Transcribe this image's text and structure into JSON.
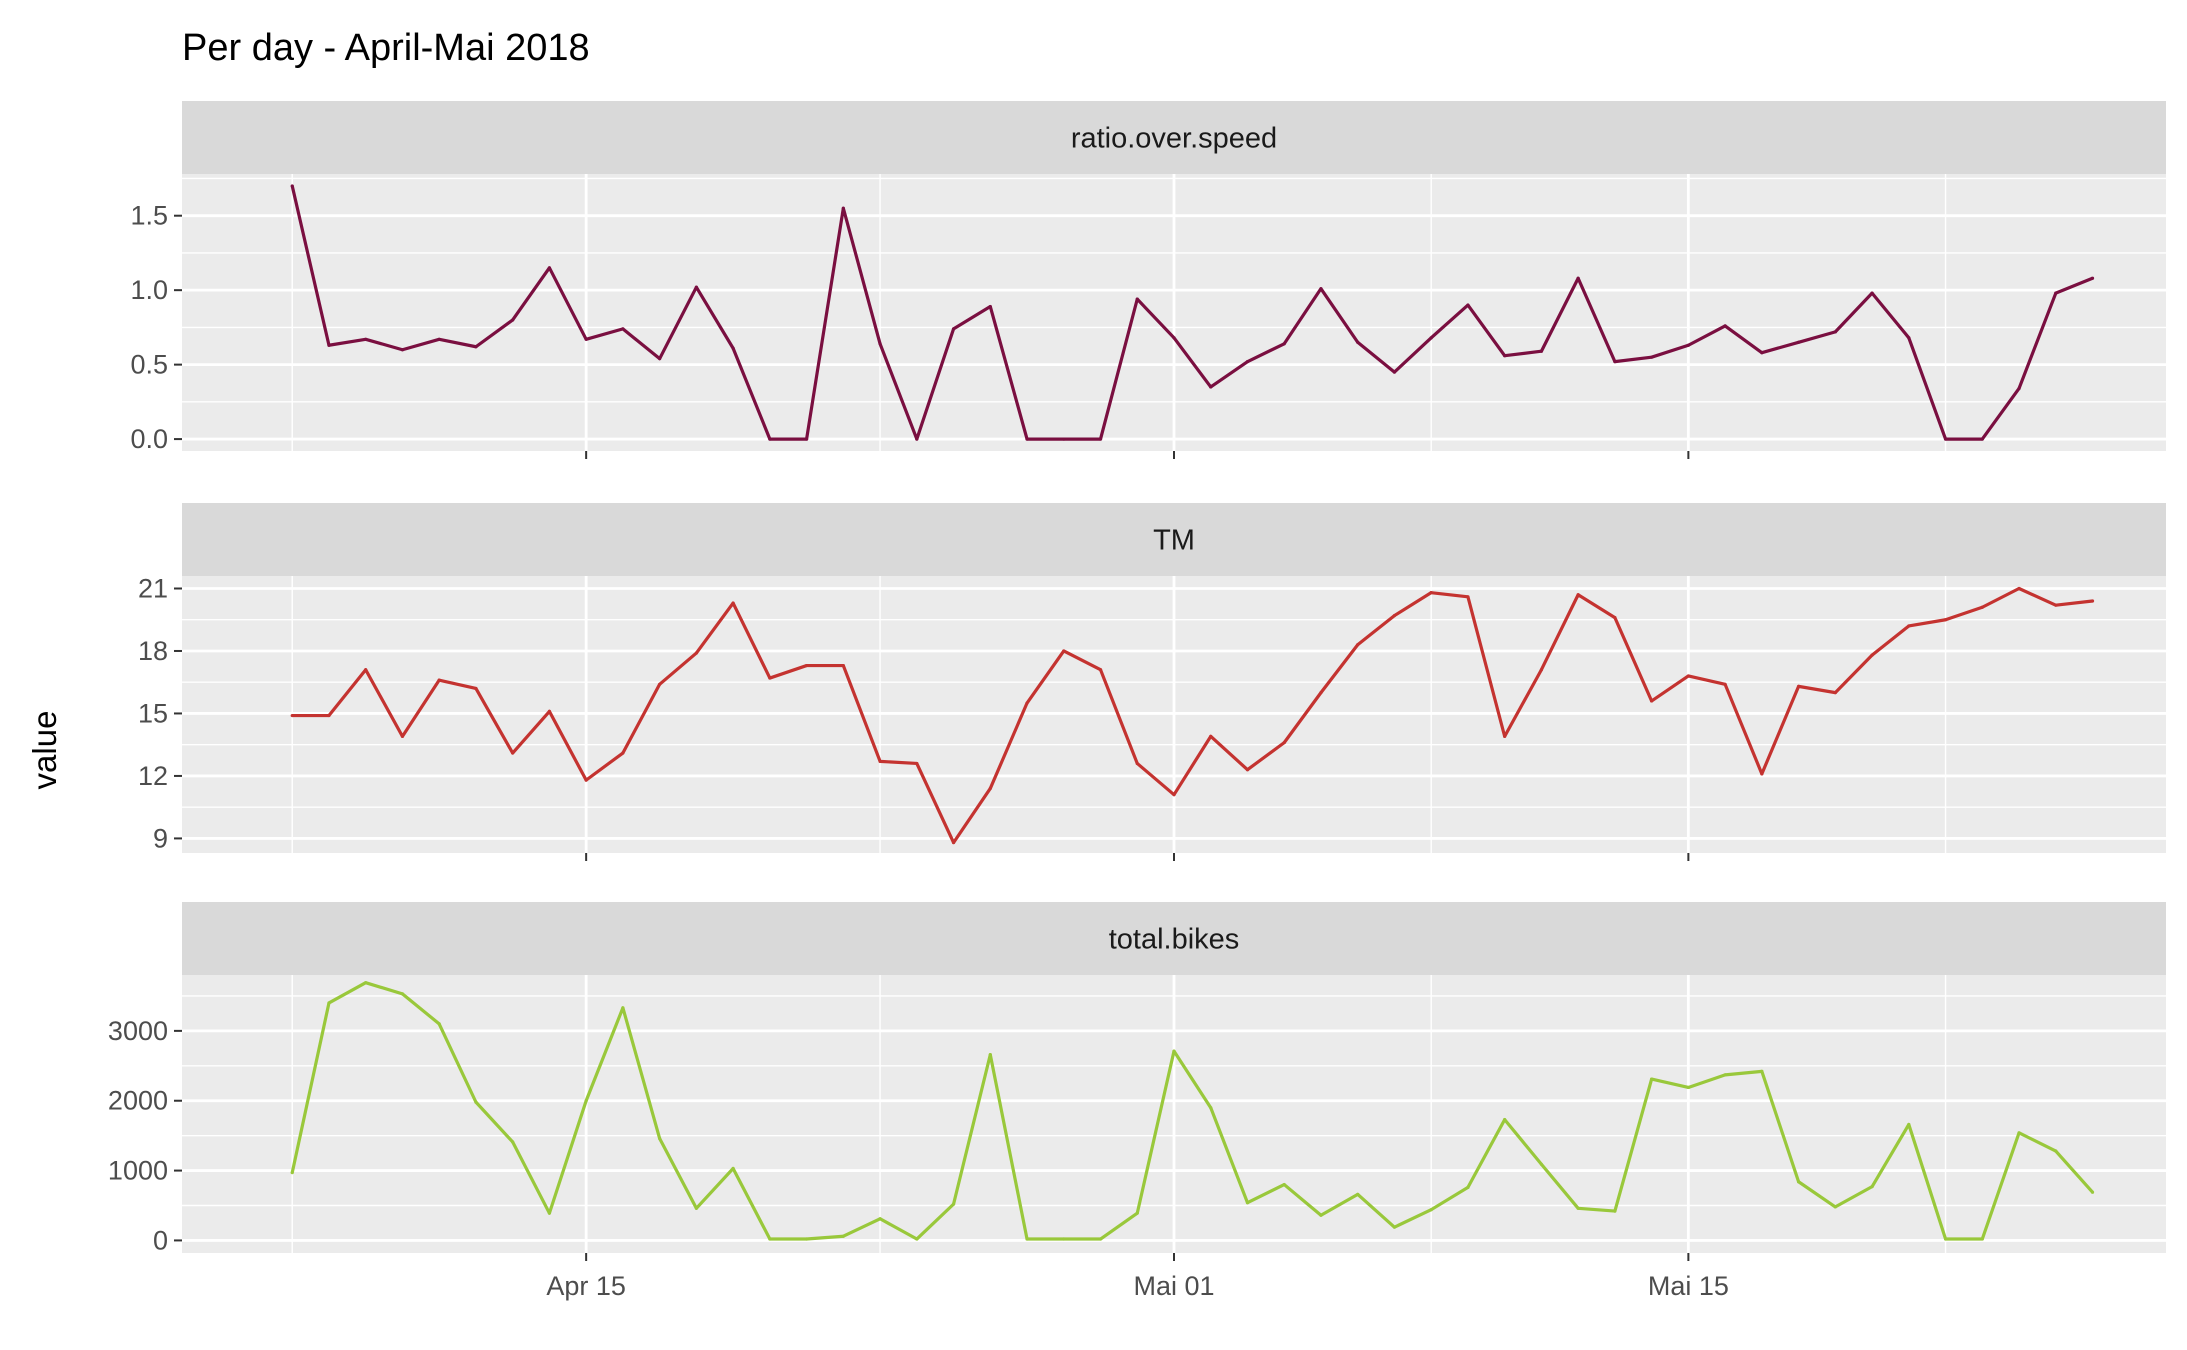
{
  "chart_data": {
    "type": "line",
    "title": "Per day - April-Mai 2018",
    "ylabel": "value",
    "xlabel": "",
    "x": [
      "2018-04-07",
      "2018-04-08",
      "2018-04-09",
      "2018-04-10",
      "2018-04-11",
      "2018-04-12",
      "2018-04-13",
      "2018-04-14",
      "2018-04-15",
      "2018-04-16",
      "2018-04-17",
      "2018-04-18",
      "2018-04-19",
      "2018-04-20",
      "2018-04-21",
      "2018-04-22",
      "2018-04-23",
      "2018-04-24",
      "2018-04-25",
      "2018-04-26",
      "2018-04-27",
      "2018-04-28",
      "2018-04-29",
      "2018-04-30",
      "2018-05-01",
      "2018-05-02",
      "2018-05-03",
      "2018-05-04",
      "2018-05-05",
      "2018-05-06",
      "2018-05-07",
      "2018-05-08",
      "2018-05-09",
      "2018-05-10",
      "2018-05-11",
      "2018-05-12",
      "2018-05-13",
      "2018-05-14",
      "2018-05-15",
      "2018-05-16",
      "2018-05-17",
      "2018-05-18",
      "2018-05-19",
      "2018-05-20",
      "2018-05-21",
      "2018-05-22",
      "2018-05-23",
      "2018-05-24",
      "2018-05-25",
      "2018-05-26"
    ],
    "xticks": [
      "2018-04-15",
      "2018-05-01",
      "2018-05-15"
    ],
    "xtick_labels": [
      "Apr 15",
      "Mai 01",
      "Mai 15"
    ],
    "xlim": [
      "2018-04-04",
      "2018-05-28"
    ],
    "grid": true,
    "legend": "none",
    "panels": [
      {
        "strip": "ratio.over.speed",
        "color": "#7a0f40",
        "ylim": [
          -0.08,
          1.78
        ],
        "yticks": [
          0.0,
          0.5,
          1.0,
          1.5
        ],
        "ytick_labels": [
          "0.0",
          "0.5",
          "1.0",
          "1.5"
        ],
        "values": [
          1.7,
          0.63,
          0.67,
          0.6,
          0.67,
          0.62,
          0.8,
          1.15,
          0.67,
          0.74,
          0.54,
          1.02,
          0.61,
          0.0,
          0.0,
          1.55,
          0.64,
          0.0,
          0.74,
          0.89,
          0.0,
          0.0,
          0.0,
          0.94,
          0.68,
          0.35,
          0.52,
          0.64,
          1.01,
          0.65,
          0.45,
          0.68,
          0.9,
          0.56,
          0.59,
          1.08,
          0.52,
          0.55,
          0.63,
          0.76,
          0.58,
          0.65,
          0.72,
          0.98,
          0.68,
          0.0,
          0.0,
          0.34,
          0.98,
          1.08
        ]
      },
      {
        "strip": "TM",
        "color": "#c43330",
        "ylim": [
          8.3,
          21.6
        ],
        "yticks": [
          9,
          12,
          15,
          18,
          21
        ],
        "ytick_labels": [
          "9",
          "12",
          "15",
          "18",
          "21"
        ],
        "values": [
          14.9,
          14.9,
          17.1,
          13.9,
          16.6,
          16.2,
          13.1,
          15.1,
          11.8,
          13.1,
          16.4,
          17.9,
          20.3,
          16.7,
          17.3,
          17.3,
          12.7,
          12.6,
          8.8,
          11.4,
          15.5,
          18.0,
          17.1,
          12.6,
          11.1,
          13.9,
          12.3,
          13.6,
          16.0,
          18.3,
          19.7,
          20.8,
          20.6,
          13.9,
          17.1,
          20.7,
          19.6,
          15.6,
          16.8,
          16.4,
          12.1,
          16.3,
          16.0,
          17.8,
          19.2,
          19.5,
          20.1,
          21.0,
          20.2,
          20.4
        ]
      },
      {
        "strip": "total.bikes",
        "color": "#99c83b",
        "ylim": [
          -180,
          3800
        ],
        "yticks": [
          0,
          1000,
          2000,
          3000
        ],
        "ytick_labels": [
          "0",
          "1000",
          "2000",
          "3000"
        ],
        "values": [
          970,
          3400,
          3690,
          3530,
          3100,
          1980,
          1410,
          390,
          2000,
          3330,
          1460,
          460,
          1030,
          20,
          20,
          60,
          310,
          20,
          520,
          2660,
          20,
          20,
          20,
          390,
          2710,
          1900,
          540,
          800,
          360,
          660,
          190,
          440,
          760,
          1730,
          1090,
          460,
          420,
          2310,
          2190,
          2370,
          2420,
          840,
          480,
          770,
          1660,
          20,
          20,
          1540,
          1280,
          690
        ]
      }
    ]
  }
}
